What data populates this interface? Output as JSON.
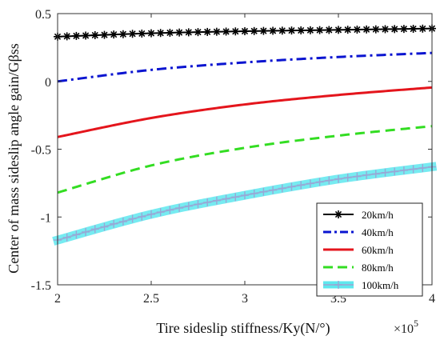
{
  "chart_data": {
    "type": "line",
    "xlabel": "Tire sideslip stiffness/Ky(N/°)",
    "ylabel": "Center of mass sideslip angle gain/Gβss",
    "x_exponent_label": "×10",
    "x_exponent_power": "5",
    "xlim": [
      2,
      4
    ],
    "ylim": [
      -1.5,
      0.5
    ],
    "xticks": [
      2,
      2.5,
      3,
      3.5,
      4
    ],
    "xtick_labels": [
      "2",
      "2.5",
      "3",
      "3.5",
      "4"
    ],
    "yticks": [
      0.5,
      0,
      -0.5,
      -1,
      -1.5
    ],
    "ytick_labels": [
      "0.5",
      "0",
      "-0.5",
      "-1",
      "-1.5"
    ],
    "grid": false,
    "legend_position": "bottom-right",
    "series": [
      {
        "name": "20km/h",
        "color": "#000000",
        "style": "solid-asterisk",
        "x": [
          2.0,
          2.5,
          3.0,
          3.5,
          4.0
        ],
        "values": [
          0.33,
          0.355,
          0.37,
          0.38,
          0.39
        ]
      },
      {
        "name": "40km/h",
        "color": "#0a14d0",
        "style": "dashdot",
        "x": [
          2.0,
          2.5,
          3.0,
          3.5,
          4.0
        ],
        "values": [
          0.0,
          0.085,
          0.14,
          0.18,
          0.21
        ]
      },
      {
        "name": "60km/h",
        "color": "#e4151c",
        "style": "solid",
        "x": [
          2.0,
          2.5,
          3.0,
          3.5,
          4.0
        ],
        "values": [
          -0.41,
          -0.27,
          -0.17,
          -0.1,
          -0.045
        ]
      },
      {
        "name": "80km/h",
        "color": "#33dd22",
        "style": "dashed",
        "x": [
          2.0,
          2.5,
          3.0,
          3.5,
          4.0
        ],
        "values": [
          -0.82,
          -0.62,
          -0.49,
          -0.4,
          -0.33
        ]
      },
      {
        "name": "100km/h",
        "color": "#5ee8ee",
        "style": "thick-plus",
        "x": [
          2.0,
          2.5,
          3.0,
          3.5,
          4.0
        ],
        "values": [
          -1.17,
          -0.98,
          -0.84,
          -0.72,
          -0.63
        ]
      }
    ]
  }
}
